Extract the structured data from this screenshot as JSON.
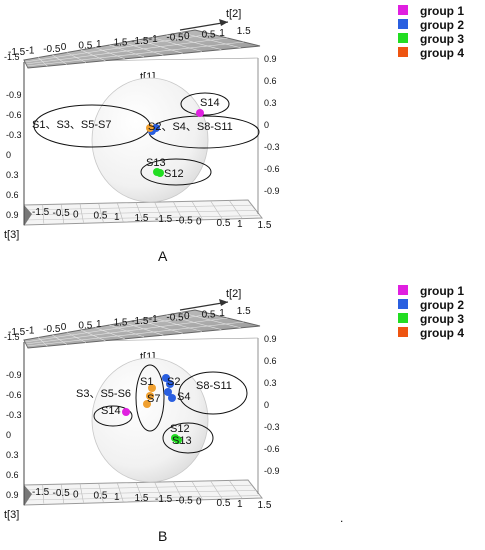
{
  "chart_data": [
    {
      "type": "scatter",
      "panel_label": "A",
      "axes": {
        "t1": "t[1]",
        "t2": "t[2]",
        "t3": "t[3]"
      },
      "top_x_ticks": [
        "-1.5",
        "-1",
        "-0.5",
        "0",
        "0.5",
        "1",
        "1.5",
        "-1.5",
        "-1",
        "-0.5",
        "0",
        "0.5",
        "1",
        "1.5"
      ],
      "right_ticks": [
        "0.9",
        "0.6",
        "0.3",
        "0",
        "-0.3",
        "-0.6",
        "-0.9"
      ],
      "left_ticks": [
        "-1.5",
        "-0.9",
        "-0.6",
        "-0.3",
        "0",
        "0.3",
        "0.6",
        "0.9"
      ],
      "bottom_x_ticks": [
        "-1.5",
        "-0.5",
        "0",
        "0.5",
        "1",
        "1.5",
        "-1.5",
        "-0.5",
        "0",
        "0.5",
        "1",
        "1.5"
      ],
      "legend": [
        {
          "name": "group 1",
          "color": "#e020e0"
        },
        {
          "name": "group 2",
          "color": "#2a5fe0"
        },
        {
          "name": "group 3",
          "color": "#22dd22"
        },
        {
          "name": "group 4",
          "color": "#ee5511"
        }
      ],
      "cluster_labels": [
        "S14",
        "S1、S3、S5-S7",
        "S2、S4、S8-S11",
        "S13",
        "S12"
      ]
    },
    {
      "type": "scatter",
      "panel_label": "B",
      "axes": {
        "t1": "t[1]",
        "t2": "t[2]",
        "t3": "t[3]"
      },
      "top_x_ticks": [
        "-1.5",
        "-1",
        "-0.5",
        "0",
        "0.5",
        "1",
        "1.5",
        "-1.5",
        "-1",
        "-0.5",
        "0",
        "0.5",
        "1",
        "1.5"
      ],
      "right_ticks": [
        "0.9",
        "0.6",
        "0.3",
        "0",
        "-0.3",
        "-0.6",
        "-0.9"
      ],
      "left_ticks": [
        "-1.5",
        "-0.9",
        "-0.6",
        "-0.3",
        "0",
        "0.3",
        "0.6",
        "0.9"
      ],
      "bottom_x_ticks": [
        "-1.5",
        "-0.5",
        "0",
        "0.5",
        "1",
        "1.5",
        "-1.5",
        "-0.5",
        "0",
        "0.5",
        "1",
        "1.5"
      ],
      "legend": [
        {
          "name": "group 1",
          "color": "#e020e0"
        },
        {
          "name": "group 2",
          "color": "#2a5fe0"
        },
        {
          "name": "group 3",
          "color": "#22dd22"
        },
        {
          "name": "group 4",
          "color": "#ee5511"
        }
      ],
      "cluster_labels": [
        "S1",
        "S2",
        "S8-S11",
        "S3、S5-S6",
        "S4",
        "S7",
        "S14",
        "S12",
        "S13"
      ]
    }
  ],
  "footnote": "."
}
